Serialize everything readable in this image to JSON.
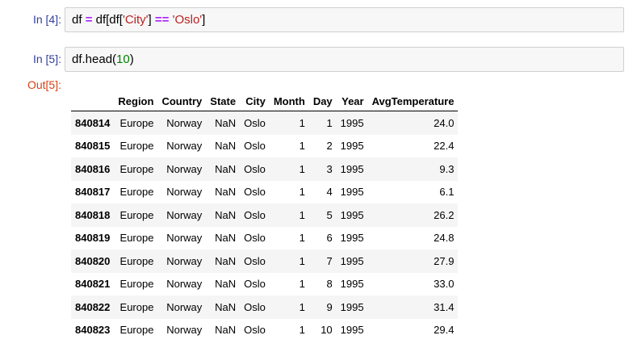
{
  "cells": [
    {
      "prompt": "In [4]:",
      "code": {
        "p1": "df ",
        "op1": "=",
        "p2": " df[df[",
        "s1": "'City'",
        "p3": "] ",
        "op2": "==",
        "p4": " ",
        "s2": "'Oslo'",
        "p5": "]"
      }
    },
    {
      "prompt": "In [5]:",
      "code": {
        "p1": "df.head(",
        "n1": "10",
        "p2": ")"
      }
    }
  ],
  "output": {
    "prompt": "Out[5]:",
    "columns": [
      "",
      "Region",
      "Country",
      "State",
      "City",
      "Month",
      "Day",
      "Year",
      "AvgTemperature"
    ],
    "rows": [
      [
        "840814",
        "Europe",
        "Norway",
        "NaN",
        "Oslo",
        "1",
        "1",
        "1995",
        "24.0"
      ],
      [
        "840815",
        "Europe",
        "Norway",
        "NaN",
        "Oslo",
        "1",
        "2",
        "1995",
        "22.4"
      ],
      [
        "840816",
        "Europe",
        "Norway",
        "NaN",
        "Oslo",
        "1",
        "3",
        "1995",
        "9.3"
      ],
      [
        "840817",
        "Europe",
        "Norway",
        "NaN",
        "Oslo",
        "1",
        "4",
        "1995",
        "6.1"
      ],
      [
        "840818",
        "Europe",
        "Norway",
        "NaN",
        "Oslo",
        "1",
        "5",
        "1995",
        "26.2"
      ],
      [
        "840819",
        "Europe",
        "Norway",
        "NaN",
        "Oslo",
        "1",
        "6",
        "1995",
        "24.8"
      ],
      [
        "840820",
        "Europe",
        "Norway",
        "NaN",
        "Oslo",
        "1",
        "7",
        "1995",
        "27.9"
      ],
      [
        "840821",
        "Europe",
        "Norway",
        "NaN",
        "Oslo",
        "1",
        "8",
        "1995",
        "33.0"
      ],
      [
        "840822",
        "Europe",
        "Norway",
        "NaN",
        "Oslo",
        "1",
        "9",
        "1995",
        "31.4"
      ],
      [
        "840823",
        "Europe",
        "Norway",
        "NaN",
        "Oslo",
        "1",
        "10",
        "1995",
        "29.4"
      ]
    ]
  }
}
